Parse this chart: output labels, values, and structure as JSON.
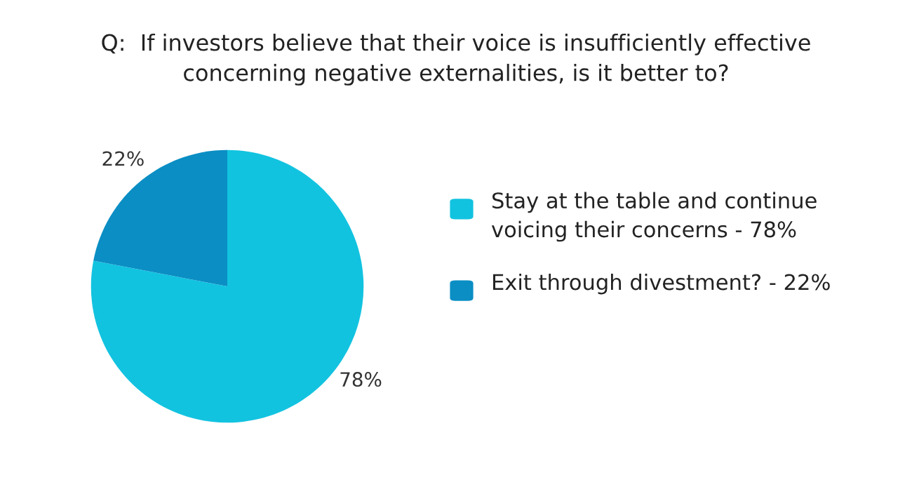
{
  "chart_data": {
    "type": "pie",
    "title": "Q:  If investors believe that their voice is insufficiently effective\nconcerning negative externalities, is it better to?",
    "categories": [
      "Stay at the table and continue\nvoicing their concerns - 78%",
      "Exit through divestment? - 22%"
    ],
    "values": [
      78,
      22
    ],
    "colors": [
      "#12c3e0",
      "#0a8ec4"
    ],
    "value_labels": [
      "78%",
      "22%"
    ],
    "legend": "right"
  }
}
